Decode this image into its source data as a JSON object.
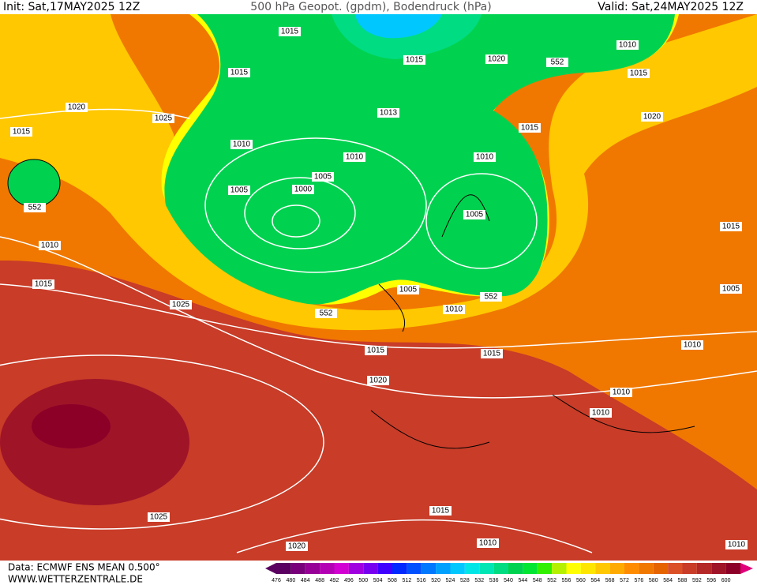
{
  "header": {
    "init": "Init: Sat,17MAY2025 12Z",
    "title": "500 hPa Geopot. (gpdm), Bodendruck (hPa)",
    "valid": "Valid: Sat,24MAY2025 12Z"
  },
  "isobar_labels": [
    1015,
    1015,
    1015,
    1020,
    552,
    1010,
    1015,
    1020,
    1025,
    1015,
    1013,
    1015,
    1020,
    1010,
    1010,
    1010,
    1005,
    1000,
    1005,
    552,
    1005,
    1015,
    1010,
    1015,
    1005,
    1005,
    552,
    1025,
    552,
    1010,
    1010,
    1015,
    1015,
    1020,
    1010,
    1010,
    1015,
    1025,
    1010,
    1020,
    1010
  ],
  "colorbar": {
    "ticks": [
      476,
      480,
      484,
      488,
      492,
      496,
      500,
      504,
      508,
      512,
      516,
      520,
      524,
      528,
      532,
      536,
      540,
      544,
      548,
      552,
      556,
      560,
      564,
      568,
      572,
      576,
      580,
      584,
      588,
      592,
      596,
      600
    ],
    "colors": [
      "#5a0060",
      "#78007a",
      "#960096",
      "#b400b4",
      "#d200d2",
      "#a000e0",
      "#7800f0",
      "#4000ff",
      "#0028ff",
      "#0050ff",
      "#0078ff",
      "#00a0ff",
      "#00c8ff",
      "#00e6e6",
      "#00e6b4",
      "#00dc82",
      "#00d250",
      "#00e632",
      "#32f000",
      "#b4f000",
      "#ffff00",
      "#ffe600",
      "#ffc800",
      "#ffaa00",
      "#ff8c00",
      "#f07800",
      "#e66400",
      "#dc5028",
      "#c83c28",
      "#b42828",
      "#a01428",
      "#8c0028"
    ]
  },
  "footer": {
    "source": "Data: ECMWF ENS MEAN 0.500°",
    "site": "WWW.WETTERZENTRALE.DE"
  }
}
